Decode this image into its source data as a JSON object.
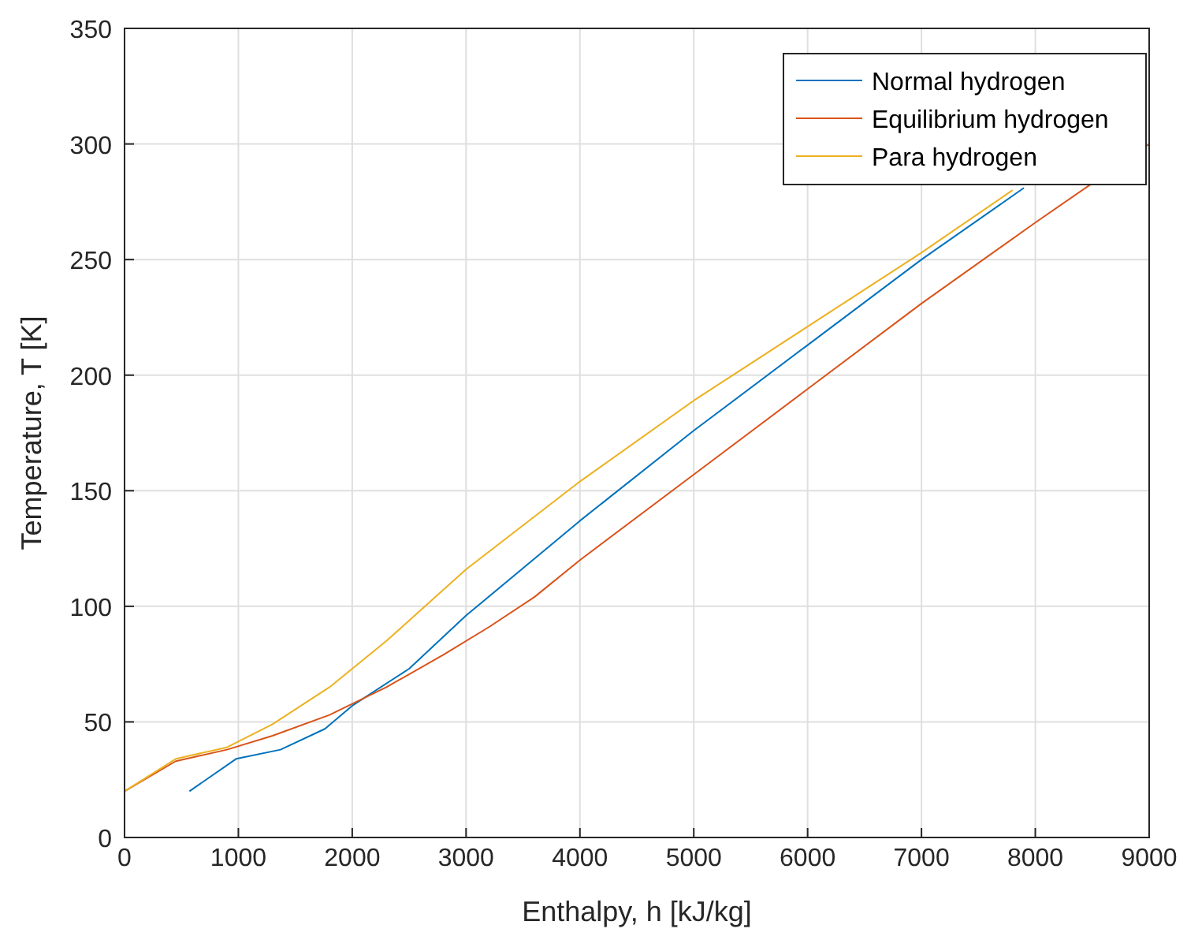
{
  "chart_data": {
    "type": "line",
    "xlabel": "Enthalpy, h [kJ/kg]",
    "ylabel": "Temperature, T [K]",
    "xlim": [
      0,
      9000
    ],
    "xticks": [
      0,
      1000,
      2000,
      3000,
      4000,
      5000,
      6000,
      7000,
      8000,
      9000
    ],
    "ylim": [
      0,
      350
    ],
    "yticks": [
      0,
      50,
      100,
      150,
      200,
      250,
      300,
      350
    ],
    "grid": true,
    "legend": "top right",
    "line_style": "solid",
    "series": [
      {
        "name": "Normal hydrogen",
        "color": "#0072bd",
        "x": [
          570,
          980,
          1370,
          1760,
          2000,
          2500,
          3000,
          4000,
          5000,
          6000,
          7000,
          7900
        ],
        "values": [
          20,
          34,
          38,
          47,
          57,
          73,
          96,
          137,
          176,
          213,
          250,
          281
        ]
      },
      {
        "name": "Equilibrium hydrogen",
        "color": "#d95319",
        "x": [
          0,
          450,
          900,
          1300,
          1800,
          2300,
          2800,
          3200,
          3600,
          4000,
          5000,
          6000,
          7000,
          8000,
          9000
        ],
        "values": [
          20,
          33,
          38,
          44,
          53,
          65,
          79,
          91,
          104,
          120,
          157,
          194,
          231,
          266,
          300
        ]
      },
      {
        "name": "Para hydrogen",
        "color": "#edb120",
        "x": [
          0,
          450,
          900,
          1300,
          1800,
          2300,
          3000,
          4000,
          5000,
          6000,
          7000,
          7800
        ],
        "values": [
          20,
          34,
          39,
          49,
          65,
          85,
          116,
          154,
          189,
          221,
          253,
          280
        ]
      }
    ]
  }
}
